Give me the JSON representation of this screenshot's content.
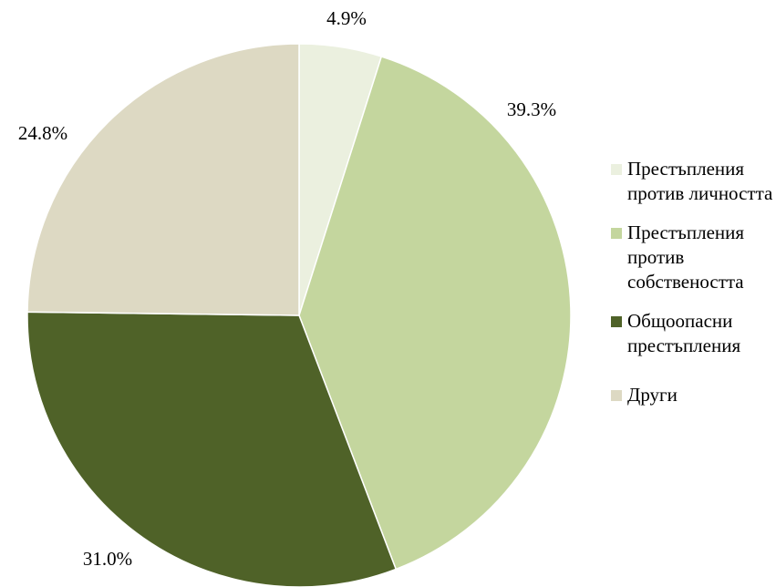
{
  "chart_data": {
    "type": "pie",
    "categories": [
      "Престъпления против личността",
      "Престъпления против собствеността",
      "Общоопасни престъпления",
      "Други"
    ],
    "values": [
      4.9,
      39.3,
      31.0,
      24.8
    ],
    "value_labels": [
      "4.9%",
      "39.3%",
      "31.0%",
      "24.8%"
    ],
    "colors": [
      "#ebf0df",
      "#c4d69e",
      "#4f6228",
      "#ddd9c3"
    ],
    "legend": "right"
  }
}
